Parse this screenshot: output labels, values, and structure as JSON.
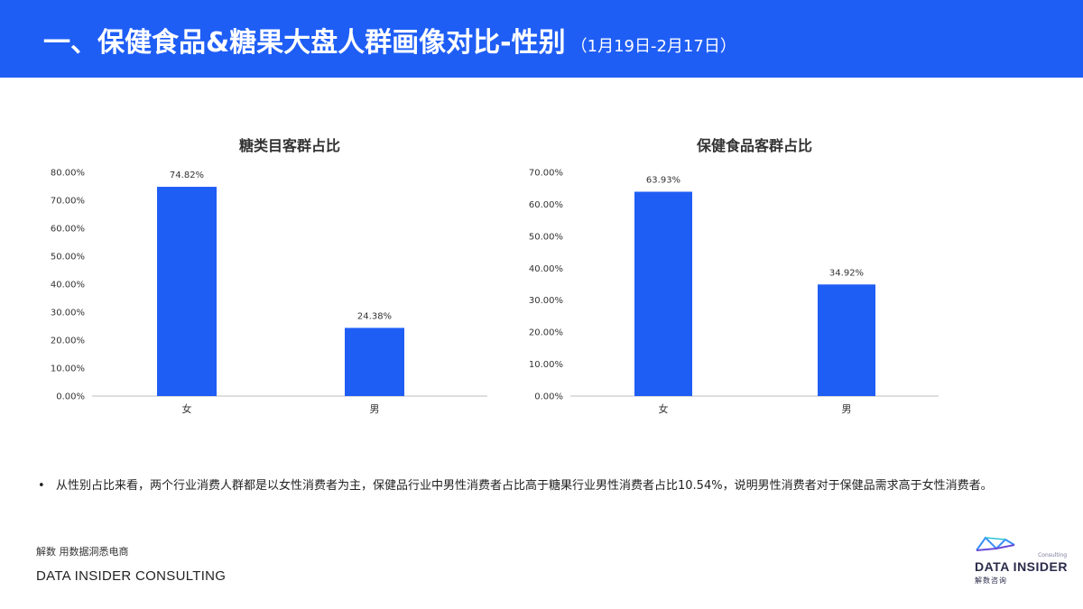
{
  "header": {
    "title": "一、保健食品&糖果大盘人群画像对比-性别",
    "subtitle": "（1月19日-2月17日）",
    "background_color": "#1f5ef5"
  },
  "chart_data": [
    {
      "type": "bar",
      "title": "糖类目客群占比",
      "categories": [
        "女",
        "男"
      ],
      "values": [
        74.82,
        24.38
      ],
      "value_labels": [
        "74.82%",
        "24.38%"
      ],
      "ylim": [
        0,
        80
      ],
      "yticks": [
        "0.00%",
        "10.00%",
        "20.00%",
        "30.00%",
        "40.00%",
        "50.00%",
        "60.00%",
        "70.00%",
        "80.00%"
      ],
      "bar_color": "#1f5ef5",
      "grid": false
    },
    {
      "type": "bar",
      "title": "保健食品客群占比",
      "categories": [
        "女",
        "男"
      ],
      "values": [
        63.93,
        34.92
      ],
      "value_labels": [
        "63.93%",
        "34.92%"
      ],
      "ylim": [
        0,
        70
      ],
      "yticks": [
        "0.00%",
        "10.00%",
        "20.00%",
        "30.00%",
        "40.00%",
        "50.00%",
        "60.00%",
        "70.00%"
      ],
      "bar_color": "#1f5ef5",
      "grid": false
    }
  ],
  "bullet": {
    "dot": "•",
    "text": "从性别占比来看，两个行业消费人群都是以女性消费者为主，保健品行业中男性消费者占比高于糖果行业男性消费者占比10.54%，说明男性消费者对于保健品需求高于女性消费者。"
  },
  "footer": {
    "slogan": "解数 用数据洞悉电商",
    "company": "DATA INSIDER CONSULTING"
  },
  "logo": {
    "consulting": "Consulting",
    "name": "DATA INSIDER",
    "cn": "解数咨询",
    "icon": "data-insider-logo-icon"
  }
}
